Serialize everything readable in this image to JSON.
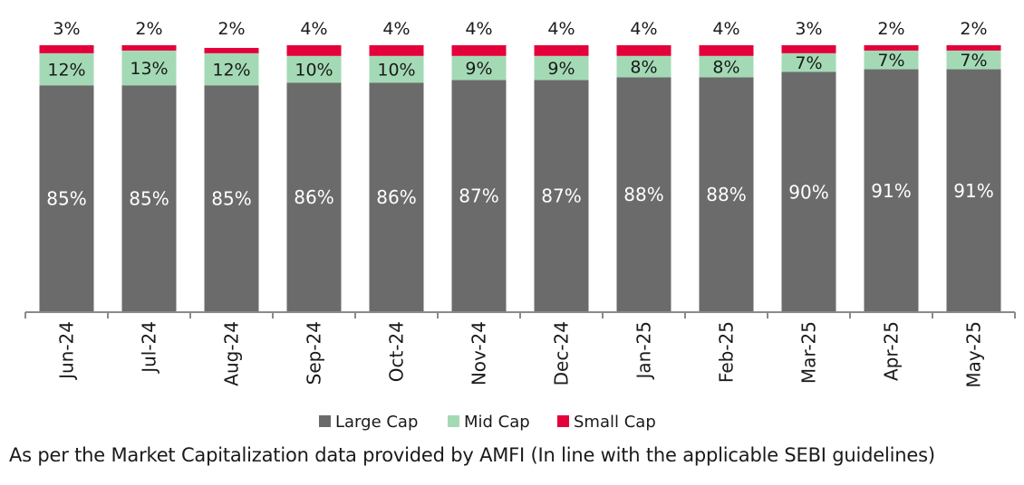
{
  "chart_data": {
    "type": "bar",
    "stacked": true,
    "normalized": true,
    "categories": [
      "Jun-24",
      "Jul-24",
      "Aug-24",
      "Sep-24",
      "Oct-24",
      "Nov-24",
      "Dec-24",
      "Jan-25",
      "Feb-25",
      "Mar-25",
      "Apr-25",
      "May-25"
    ],
    "series": [
      {
        "name": "Large Cap",
        "color": "#6b6b6b",
        "values": [
          85,
          85,
          85,
          86,
          86,
          87,
          87,
          88,
          88,
          90,
          91,
          91
        ],
        "labels": [
          "85%",
          "85%",
          "85%",
          "86%",
          "86%",
          "87%",
          "87%",
          "88%",
          "88%",
          "90%",
          "91%",
          "91%"
        ]
      },
      {
        "name": "Mid Cap",
        "color": "#a3dab5",
        "values": [
          12,
          13,
          12,
          10,
          10,
          9,
          9,
          8,
          8,
          7,
          7,
          7
        ],
        "labels": [
          "12%",
          "13%",
          "12%",
          "10%",
          "10%",
          "9%",
          "9%",
          "8%",
          "8%",
          "7%",
          "7%",
          "7%"
        ]
      },
      {
        "name": "Small Cap",
        "color": "#e4003a",
        "values": [
          3,
          2,
          2,
          4,
          4,
          4,
          4,
          4,
          4,
          3,
          2,
          2
        ],
        "labels": [
          "3%",
          "2%",
          "2%",
          "4%",
          "4%",
          "4%",
          "4%",
          "4%",
          "4%",
          "3%",
          "2%",
          "2%"
        ]
      }
    ],
    "ylim": [
      0,
      100
    ],
    "grid": false,
    "legend_position": "bottom-center"
  },
  "footnote": "As per the Market Capitalization data provided by AMFI (In line with the applicable SEBI guidelines)"
}
